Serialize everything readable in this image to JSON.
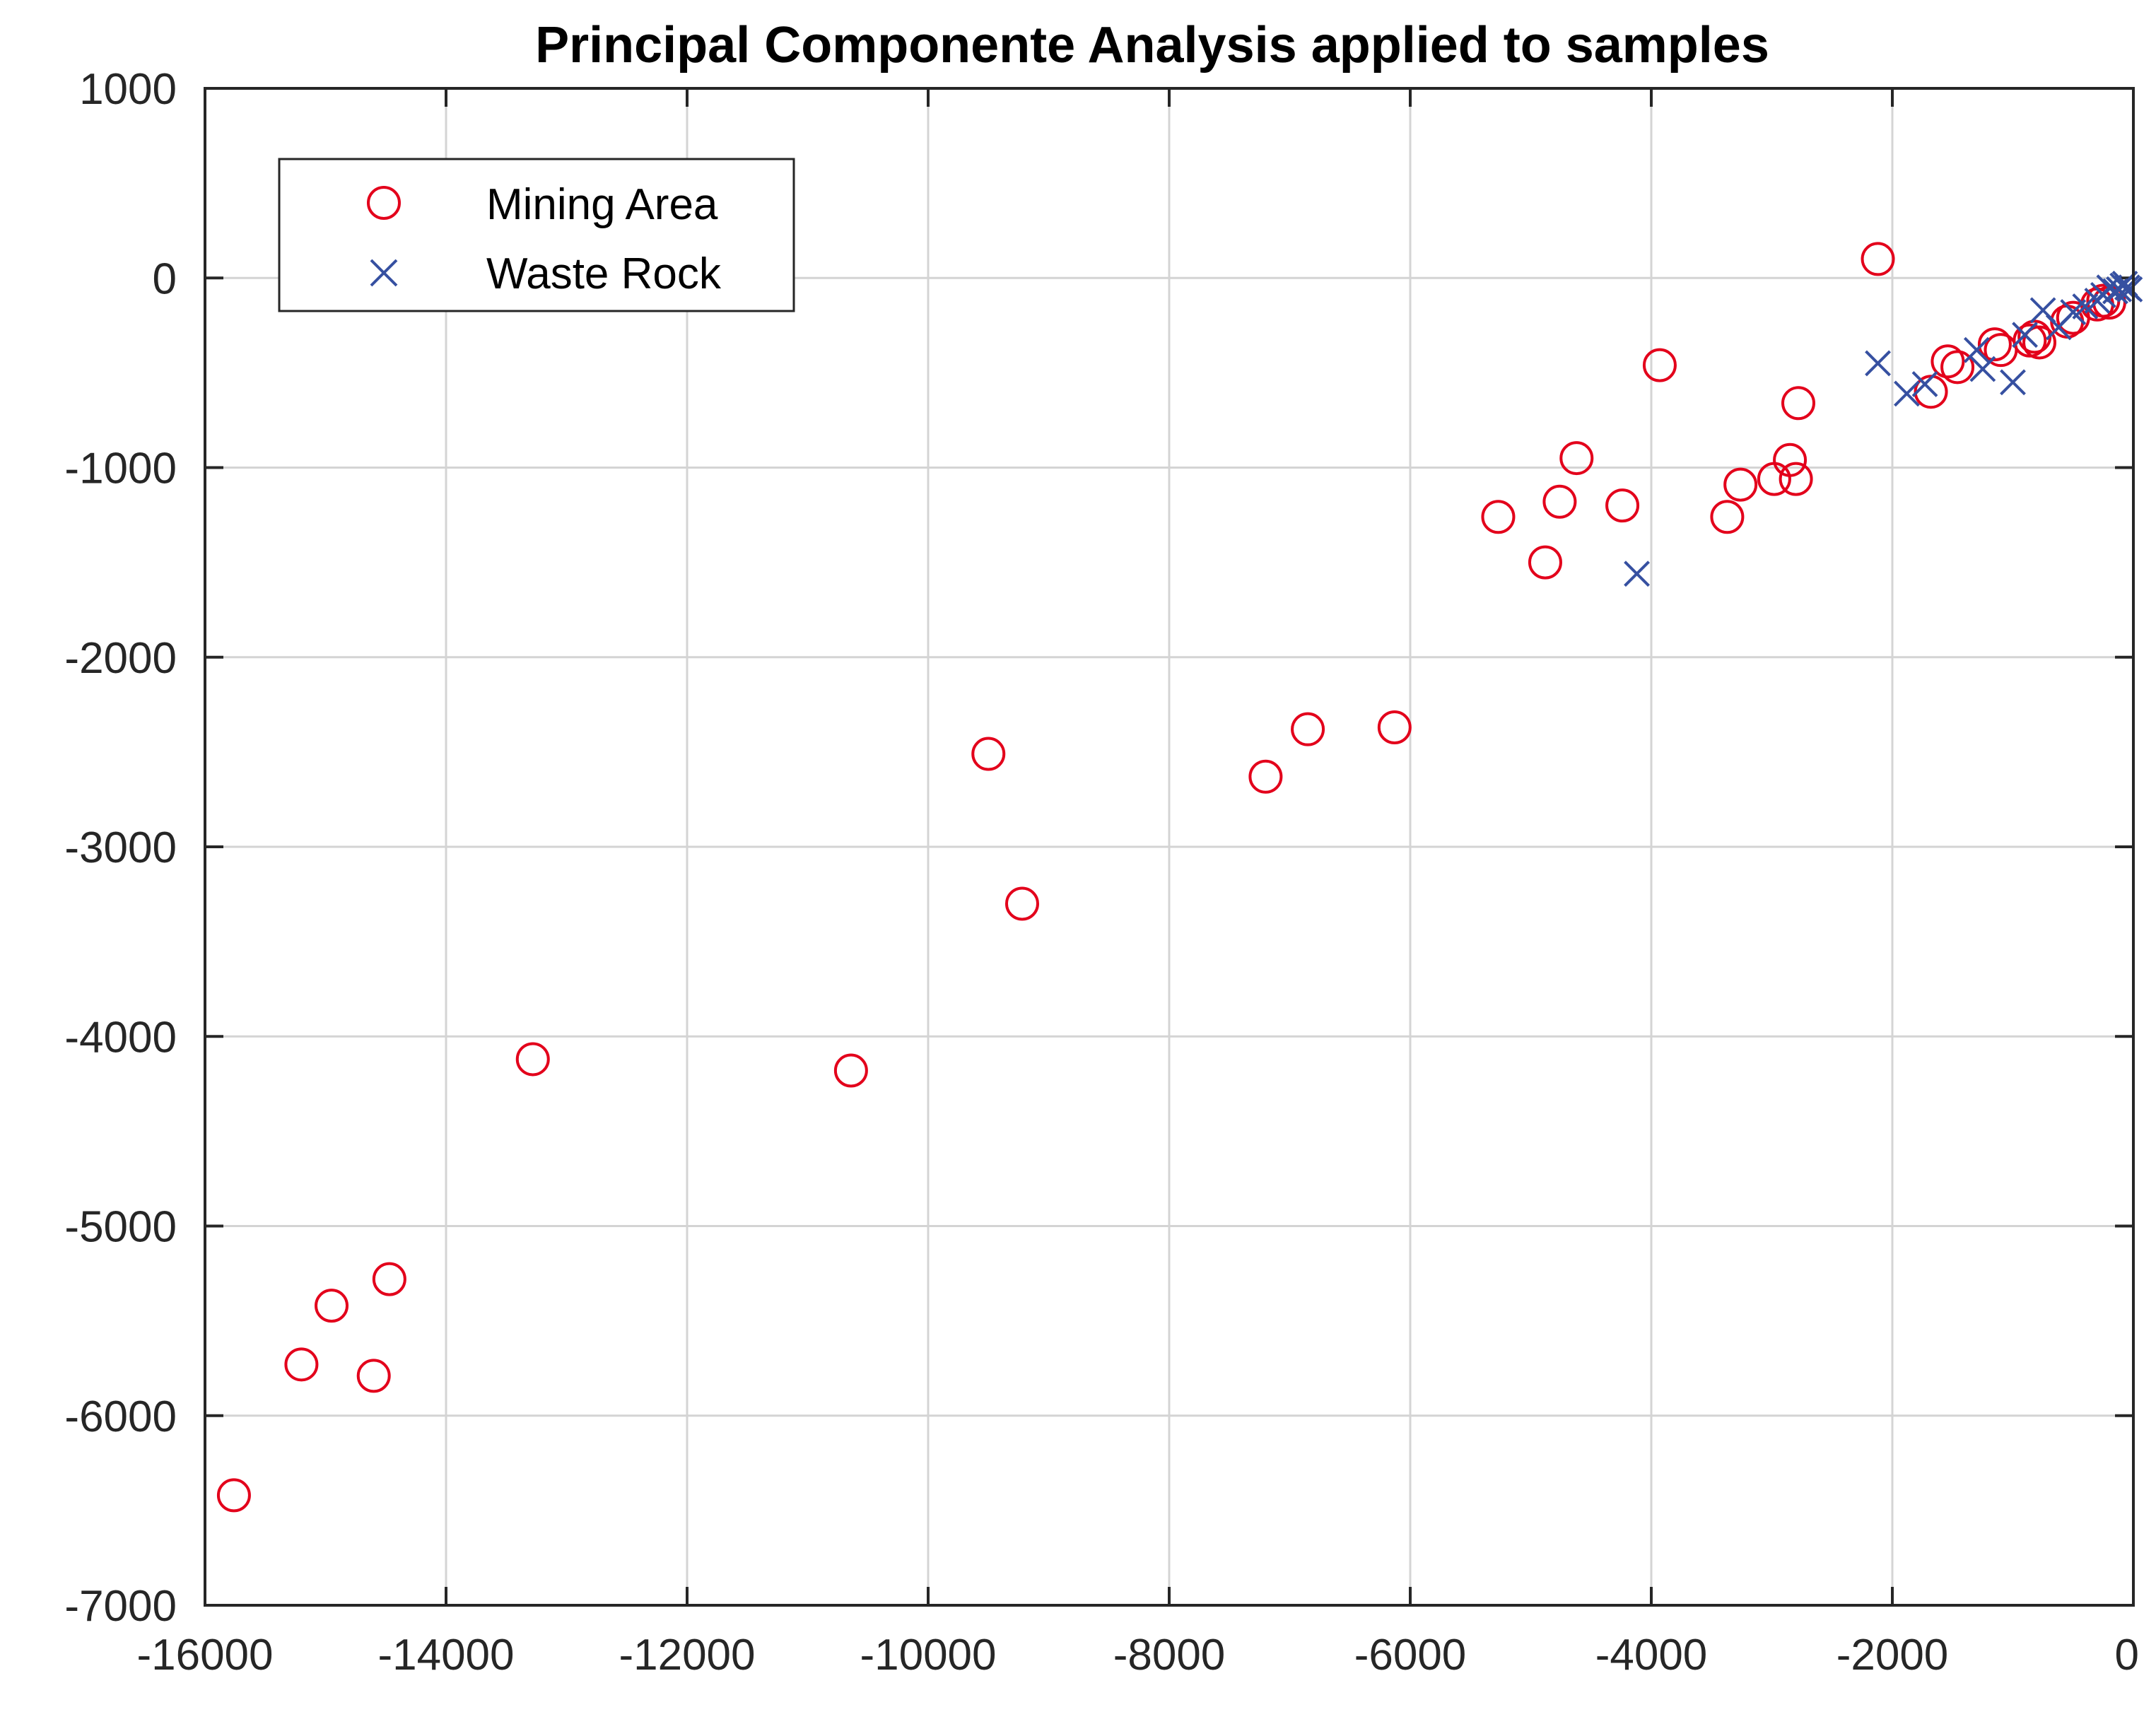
{
  "chart_data": {
    "type": "scatter",
    "title": "Principal Componente Analysis applied to samples",
    "xlabel": "",
    "ylabel": "",
    "xlim": [
      -16000,
      0
    ],
    "ylim": [
      -7000,
      1000
    ],
    "xticks": [
      -16000,
      -14000,
      -12000,
      -10000,
      -8000,
      -6000,
      -4000,
      -2000,
      0
    ],
    "yticks": [
      -7000,
      -6000,
      -5000,
      -4000,
      -3000,
      -2000,
      -1000,
      0,
      1000
    ],
    "grid": true,
    "legend_position": "top-left",
    "series": [
      {
        "name": "Mining Area",
        "marker": "circle",
        "color": "#e3001b",
        "points": [
          [
            -15760,
            -6420
          ],
          [
            -15200,
            -5730
          ],
          [
            -14950,
            -5420
          ],
          [
            -14600,
            -5790
          ],
          [
            -14470,
            -5280
          ],
          [
            -13280,
            -4120
          ],
          [
            -10640,
            -4180
          ],
          [
            -9500,
            -2510
          ],
          [
            -9220,
            -3300
          ],
          [
            -7200,
            -2630
          ],
          [
            -6850,
            -2380
          ],
          [
            -6130,
            -2370
          ],
          [
            -5270,
            -1260
          ],
          [
            -4880,
            -1500
          ],
          [
            -4760,
            -1180
          ],
          [
            -4620,
            -950
          ],
          [
            -4240,
            -1200
          ],
          [
            -3930,
            -460
          ],
          [
            -3370,
            -1260
          ],
          [
            -3260,
            -1090
          ],
          [
            -2980,
            -1060
          ],
          [
            -2850,
            -960
          ],
          [
            -2800,
            -1060
          ],
          [
            -2780,
            -660
          ],
          [
            -2120,
            100
          ],
          [
            -1680,
            -600
          ],
          [
            -1540,
            -440
          ],
          [
            -1460,
            -470
          ],
          [
            -1150,
            -350
          ],
          [
            -1100,
            -380
          ],
          [
            -860,
            -330
          ],
          [
            -820,
            -310
          ],
          [
            -780,
            -340
          ],
          [
            -550,
            -230
          ],
          [
            -500,
            -210
          ],
          [
            -300,
            -140
          ],
          [
            -250,
            -120
          ],
          [
            -200,
            -130
          ]
        ]
      },
      {
        "name": "Waste Rock",
        "marker": "x",
        "color": "#3650a1",
        "points": [
          [
            -4120,
            -1560
          ],
          [
            -2120,
            -450
          ],
          [
            -1880,
            -610
          ],
          [
            -1730,
            -560
          ],
          [
            -1250,
            -480
          ],
          [
            -1300,
            -380
          ],
          [
            -1000,
            -550
          ],
          [
            -900,
            -300
          ],
          [
            -750,
            -170
          ],
          [
            -620,
            -260
          ],
          [
            -500,
            -180
          ],
          [
            -400,
            -150
          ],
          [
            -300,
            -120
          ],
          [
            -250,
            -90
          ],
          [
            -200,
            -50
          ],
          [
            -150,
            -70
          ],
          [
            -120,
            -60
          ],
          [
            -90,
            -40
          ],
          [
            -70,
            -30
          ],
          [
            -50,
            -50
          ],
          [
            -30,
            -60
          ]
        ]
      }
    ]
  }
}
